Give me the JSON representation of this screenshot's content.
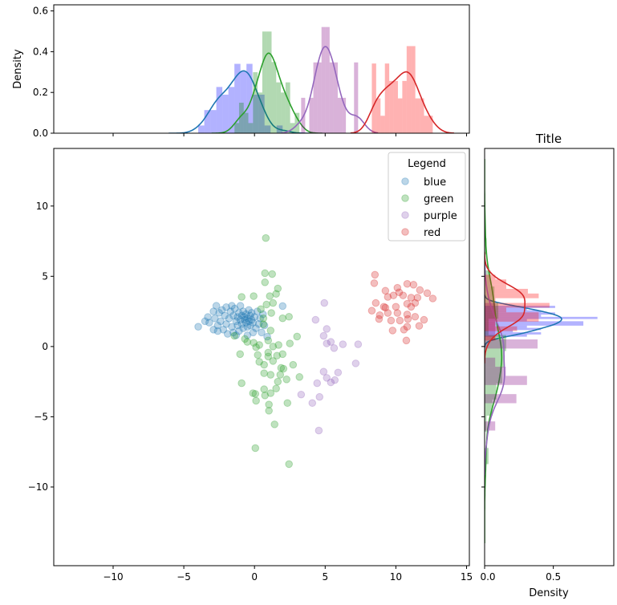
{
  "chart_data": {
    "type": "scatter",
    "title": "Title",
    "main": {
      "xlim": [
        -14.2,
        15.2
      ],
      "ylim": [
        -15.6,
        14.1
      ],
      "xticks": [
        -10,
        -5,
        0,
        5,
        10,
        15
      ],
      "xtick_labels": [
        "−10",
        "−5",
        "0",
        "5",
        "10",
        "15"
      ],
      "yticks": [
        -10,
        -5,
        0,
        5,
        10
      ],
      "ytick_labels": [
        "−10",
        "−5",
        "0",
        "5",
        "10"
      ]
    },
    "top_marginal": {
      "ylabel": "Density",
      "ylim": [
        0,
        0.63
      ],
      "yticks": [
        0,
        0.2,
        0.4,
        0.6
      ],
      "ytick_labels": [
        "0.0",
        "0.2",
        "0.4",
        "0.6"
      ]
    },
    "right_marginal": {
      "title": "Title",
      "xlabel": "Density",
      "xlim": [
        0,
        0.94
      ],
      "xticks": [
        0,
        0.5
      ],
      "xtick_labels": [
        "0.0",
        "0.5"
      ]
    },
    "legend": {
      "title": "Legend",
      "placement": "upper right"
    },
    "series": [
      {
        "name": "blue",
        "color": "#1f77b4",
        "hist_color": "#0000ff",
        "points": [
          [
            -3.98,
            1.41
          ],
          [
            1.99,
            2.88
          ],
          [
            -3.5,
            1.8
          ],
          [
            -3.3,
            2.1
          ],
          [
            -3.2,
            1.7
          ],
          [
            -2.9,
            2.5
          ],
          [
            -2.8,
            2.0
          ],
          [
            -2.7,
            2.9
          ],
          [
            -2.6,
            1.5
          ],
          [
            -2.6,
            1.1
          ],
          [
            -2.5,
            2.4
          ],
          [
            -2.4,
            1.8
          ],
          [
            -2.3,
            2.6
          ],
          [
            -2.2,
            1.2
          ],
          [
            -2.1,
            2.2
          ],
          [
            -2.0,
            1.6
          ],
          [
            -2.0,
            2.8
          ],
          [
            -1.9,
            0.9
          ],
          [
            -1.8,
            2.0
          ],
          [
            -1.7,
            2.5
          ],
          [
            -1.6,
            1.4
          ],
          [
            -1.5,
            2.2
          ],
          [
            -1.5,
            1.0
          ],
          [
            -1.4,
            2.7
          ],
          [
            -1.3,
            1.8
          ],
          [
            -1.2,
            2.1
          ],
          [
            -1.2,
            1.5
          ],
          [
            -1.1,
            2.4
          ],
          [
            -1.0,
            1.9
          ],
          [
            -1.0,
            2.9
          ],
          [
            -0.9,
            1.6
          ],
          [
            -0.9,
            2.2
          ],
          [
            -0.8,
            1.3
          ],
          [
            -0.8,
            2.5
          ],
          [
            -0.7,
            1.9
          ],
          [
            -0.7,
            2.1
          ],
          [
            -0.6,
            1.7
          ],
          [
            -0.6,
            2.3
          ],
          [
            -0.5,
            2.0
          ],
          [
            -0.5,
            1.4
          ],
          [
            -0.4,
            2.6
          ],
          [
            -0.4,
            1.8
          ],
          [
            -0.3,
            2.2
          ],
          [
            -0.3,
            1.5
          ],
          [
            -0.2,
            1.9
          ],
          [
            -0.2,
            2.4
          ],
          [
            -0.1,
            1.7
          ],
          [
            0.0,
            2.1
          ],
          [
            0.1,
            1.3
          ],
          [
            0.2,
            2.5
          ],
          [
            0.3,
            1.6
          ],
          [
            0.4,
            2.0
          ],
          [
            0.5,
            1.0
          ],
          [
            0.6,
            2.3
          ],
          [
            0.7,
            1.5
          ],
          [
            -1.1,
            1.1
          ],
          [
            -1.6,
            2.9
          ],
          [
            -2.9,
            1.2
          ],
          [
            0.9,
            0.7
          ],
          [
            -1.3,
            0.8
          ],
          [
            -0.1,
            1.0
          ],
          [
            -0.5,
            0.8
          ]
        ]
      },
      {
        "name": "green",
        "color": "#2ca02c",
        "hist_color": "#008000",
        "points": [
          [
            0.8,
            7.72
          ],
          [
            0.74,
            5.22
          ],
          [
            1.25,
            5.16
          ],
          [
            0.74,
            4.57
          ],
          [
            1.65,
            4.13
          ],
          [
            1.53,
            3.75
          ],
          [
            1.08,
            3.59
          ],
          [
            -0.06,
            3.59
          ],
          [
            -0.91,
            3.53
          ],
          [
            1.31,
            3.1
          ],
          [
            0.85,
            2.99
          ],
          [
            0.45,
            2.66
          ],
          [
            1.19,
            2.39
          ],
          [
            1.99,
            2.01
          ],
          [
            2.44,
            2.12
          ],
          [
            0.63,
            2.01
          ],
          [
            0.63,
            1.58
          ],
          [
            1.14,
            1.14
          ],
          [
            3.01,
            0.71
          ],
          [
            -1.42,
            0.76
          ],
          [
            -0.68,
            0.54
          ],
          [
            -0.51,
            0.33
          ],
          [
            -0.06,
            0.27
          ],
          [
            0.34,
            0.11
          ],
          [
            0.97,
            0.43
          ],
          [
            0.11,
            -0.05
          ],
          [
            1.31,
            0.0
          ],
          [
            1.7,
            0.11
          ],
          [
            2.5,
            0.22
          ],
          [
            0.97,
            -0.43
          ],
          [
            1.59,
            -0.65
          ],
          [
            1.99,
            -0.54
          ],
          [
            -1.02,
            -0.54
          ],
          [
            0.23,
            -0.6
          ],
          [
            0.97,
            -0.71
          ],
          [
            1.31,
            -1.03
          ],
          [
            0.34,
            -1.09
          ],
          [
            0.68,
            -1.3
          ],
          [
            2.73,
            -1.3
          ],
          [
            1.88,
            -1.52
          ],
          [
            2.05,
            -1.58
          ],
          [
            0.68,
            -1.9
          ],
          [
            1.14,
            -2.01
          ],
          [
            1.82,
            -2.01
          ],
          [
            2.27,
            -2.34
          ],
          [
            3.18,
            -2.17
          ],
          [
            1.65,
            -2.5
          ],
          [
            -0.91,
            -2.61
          ],
          [
            1.53,
            -2.99
          ],
          [
            0.68,
            -3.04
          ],
          [
            -0.11,
            -3.32
          ],
          [
            0.06,
            -3.37
          ],
          [
            0.74,
            -3.48
          ],
          [
            1.14,
            -3.32
          ],
          [
            0.11,
            -3.86
          ],
          [
            2.33,
            -4.02
          ],
          [
            1.02,
            -4.13
          ],
          [
            1.02,
            -4.57
          ],
          [
            1.42,
            -5.54
          ],
          [
            0.06,
            -7.23
          ],
          [
            2.44,
            -8.37
          ]
        ]
      },
      {
        "name": "purple",
        "color": "#9467bd",
        "hist_color": "#800080",
        "points": [
          [
            4.94,
            3.1
          ],
          [
            4.32,
            1.9
          ],
          [
            5.11,
            1.25
          ],
          [
            4.89,
            0.76
          ],
          [
            5.11,
            0.22
          ],
          [
            5.4,
            0.33
          ],
          [
            5.63,
            -0.11
          ],
          [
            6.25,
            0.16
          ],
          [
            7.33,
            0.16
          ],
          [
            7.16,
            -1.2
          ],
          [
            4.89,
            -1.79
          ],
          [
            5.91,
            -1.85
          ],
          [
            5.11,
            -2.23
          ],
          [
            5.4,
            -2.55
          ],
          [
            5.68,
            -2.39
          ],
          [
            4.43,
            -2.61
          ],
          [
            4.6,
            -3.59
          ],
          [
            4.09,
            -4.02
          ],
          [
            3.3,
            -3.42
          ],
          [
            4.55,
            -5.98
          ]
        ]
      },
      {
        "name": "red",
        "color": "#d62728",
        "hist_color": "#ff0000",
        "points": [
          [
            8.52,
            5.11
          ],
          [
            8.47,
            4.51
          ],
          [
            9.26,
            3.97
          ],
          [
            10.11,
            4.18
          ],
          [
            10.8,
            4.46
          ],
          [
            11.25,
            4.4
          ],
          [
            11.7,
            4.02
          ],
          [
            12.22,
            3.8
          ],
          [
            12.61,
            3.42
          ],
          [
            9.43,
            3.53
          ],
          [
            9.83,
            3.64
          ],
          [
            10.51,
            3.64
          ],
          [
            11.08,
            3.48
          ],
          [
            11.53,
            3.48
          ],
          [
            8.58,
            3.1
          ],
          [
            9.15,
            2.83
          ],
          [
            10.0,
            2.83
          ],
          [
            10.8,
            3.04
          ],
          [
            11.36,
            3.1
          ],
          [
            8.3,
            2.55
          ],
          [
            8.86,
            2.23
          ],
          [
            9.43,
            2.39
          ],
          [
            10.11,
            2.39
          ],
          [
            10.8,
            2.28
          ],
          [
            11.36,
            2.12
          ],
          [
            11.99,
            1.9
          ],
          [
            8.81,
            1.96
          ],
          [
            9.66,
            1.85
          ],
          [
            10.28,
            1.85
          ],
          [
            10.85,
            1.96
          ],
          [
            11.65,
            1.47
          ],
          [
            9.77,
            1.14
          ],
          [
            10.57,
            1.2
          ],
          [
            10.8,
            1.41
          ],
          [
            10.74,
            0.43
          ],
          [
            9.26,
            2.77
          ],
          [
            11.08,
            2.83
          ],
          [
            10.23,
            3.86
          ]
        ]
      }
    ]
  }
}
